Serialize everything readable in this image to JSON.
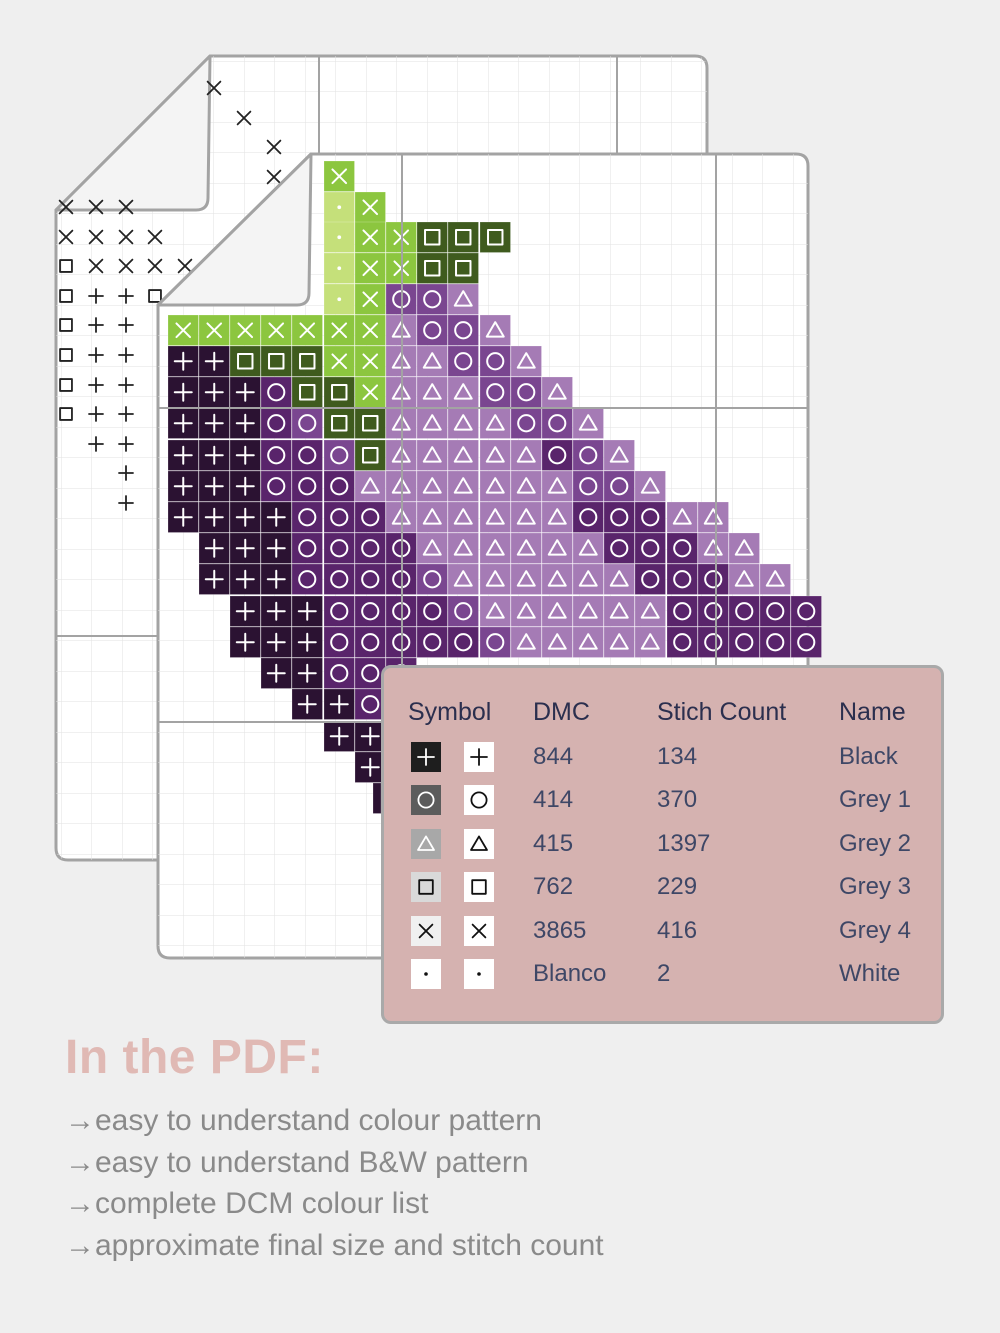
{
  "legend": {
    "headers": {
      "symbol": "Symbol",
      "dmc": "DMC",
      "count": "Stich Count",
      "name": "Name"
    },
    "rows": [
      {
        "symbol_icon": "plus-icon",
        "swatch_color": "#1e1e1e",
        "dmc": "844",
        "count": "134",
        "name": "Black"
      },
      {
        "symbol_icon": "circle-icon",
        "swatch_color": "#5c5c5c",
        "dmc": "414",
        "count": "370",
        "name": "Grey 1"
      },
      {
        "symbol_icon": "triangle-icon",
        "swatch_color": "#a8a8a8",
        "dmc": "415",
        "count": "1397",
        "name": "Grey 2"
      },
      {
        "symbol_icon": "square-icon",
        "swatch_color": "#d9d9d9",
        "dmc": "762",
        "count": "229",
        "name": "Grey 3"
      },
      {
        "symbol_icon": "cross-icon",
        "swatch_color": "#f0f0f0",
        "dmc": "3865",
        "count": "416",
        "name": "Grey 4"
      },
      {
        "symbol_icon": "dot-icon",
        "swatch_color": "#ffffff",
        "dmc": "Blanco",
        "count": "2",
        "name": "White"
      }
    ]
  },
  "pdf": {
    "title": "In the PDF:",
    "features": [
      "easy to understand colour pattern",
      "easy to understand B&W pattern",
      "complete DCM colour list",
      "approximate final size and stitch count"
    ],
    "arrow": "→"
  },
  "colors": {
    "background": "#efefef",
    "legend_bg": "#d5b2b0",
    "title_color": "#e0b9b4",
    "black_purple": "#2b1232",
    "dark_purple": "#59246b",
    "mid_purple": "#7a4690",
    "light_purple": "#a57bb5",
    "lime": "#c5e07a",
    "green": "#8cc63f",
    "dark_green": "#3f5b1e"
  }
}
